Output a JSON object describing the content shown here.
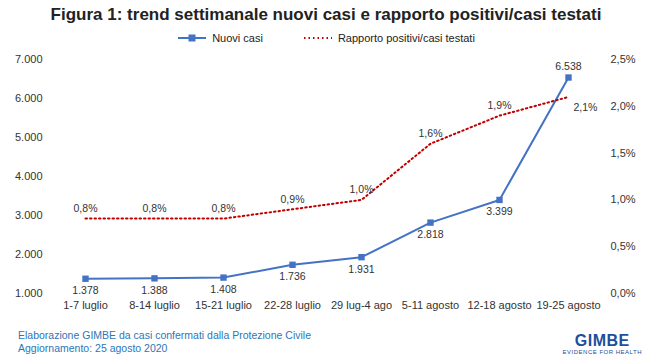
{
  "chart_data": {
    "type": "line",
    "title": "Figura 1: trend settimanale nuovi casi e rapporto positivi/casi testati",
    "categories": [
      "1-7 luglio",
      "8-14 luglio",
      "15-21 luglio",
      "22-28 luglio",
      "29 lug-4 ago",
      "5-11 agosto",
      "12-18 agosto",
      "19-25 agosto"
    ],
    "series": [
      {
        "name": "Nuovi casi",
        "color": "#4472c4",
        "marker": "square",
        "line_style": "solid",
        "values": [
          1378,
          1388,
          1408,
          1736,
          1931,
          2818,
          3399,
          6538
        ],
        "value_labels": [
          "1.378",
          "1.388",
          "1.408",
          "1.736",
          "1.931",
          "2.818",
          "3.399",
          "6.538"
        ]
      },
      {
        "name": "Rapporto positivi/casi testati",
        "color": "#c00000",
        "marker": "none",
        "line_style": "dotted",
        "axis": "y2",
        "values": [
          0.8,
          0.8,
          0.8,
          0.9,
          1.0,
          1.6,
          1.9,
          2.1
        ],
        "value_labels": [
          "0,8%",
          "0,8%",
          "0,8%",
          "0,9%",
          "1,0%",
          "1,6%",
          "1,9%",
          "2,1%"
        ]
      }
    ],
    "ylim": [
      1000,
      7000
    ],
    "yticks": [
      {
        "value": 1000,
        "label": "1.000"
      },
      {
        "value": 2000,
        "label": "2.000"
      },
      {
        "value": 3000,
        "label": "3.000"
      },
      {
        "value": 4000,
        "label": "4.000"
      },
      {
        "value": 5000,
        "label": "5.000"
      },
      {
        "value": 6000,
        "label": "6.000"
      },
      {
        "value": 7000,
        "label": "7.000"
      }
    ],
    "y2lim": [
      0,
      2.5
    ],
    "y2ticks": [
      {
        "value": 0,
        "label": "0,0%"
      },
      {
        "value": 0.5,
        "label": "0,5%"
      },
      {
        "value": 1,
        "label": "1,0%"
      },
      {
        "value": 1.5,
        "label": "1,5%"
      },
      {
        "value": 2,
        "label": "2,0%"
      },
      {
        "value": 2.5,
        "label": "2,5%"
      }
    ],
    "data_labels": true,
    "grid": false,
    "legend": "top",
    "source": [
      "Elaborazione GIMBE da casi confermati dalla Protezione Civile",
      "Aggiornamento: 25 agosto 2020"
    ],
    "logo": [
      "GIMBE",
      "EVIDENCE FOR HEALTH"
    ]
  }
}
